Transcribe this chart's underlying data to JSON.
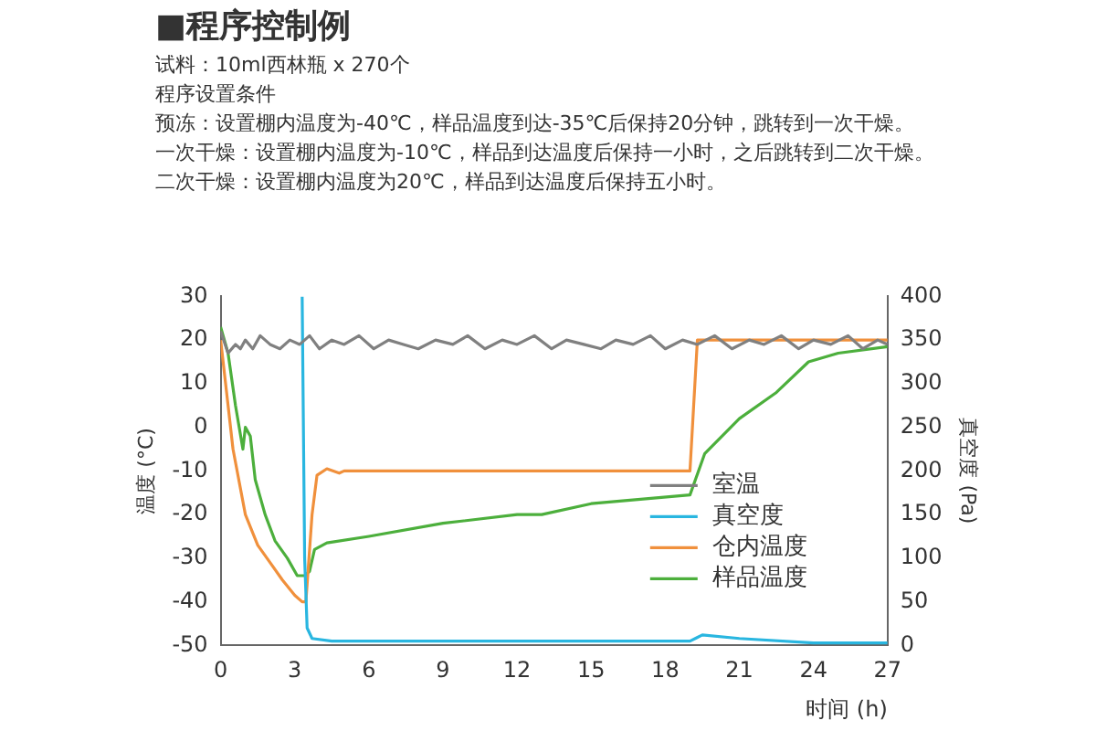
{
  "chart_data": {
    "type": "line",
    "title": "■程序控制例",
    "annotations": [
      "试料：10ml西林瓶 x 270个",
      "程序设置条件",
      "预冻：设置棚内温度为-40℃，样品温度到达-35℃后保持20分钟，跳转到一次干燥。",
      "一次干燥：设置棚内温度为-10℃，样品到达温度后保持一小时，之后跳转到二次干燥。",
      "二次干燥：设置棚内温度为20℃，样品到达温度后保持五小时。"
    ],
    "xlabel": "时间 (h)",
    "ylabel": "温度 (°C)",
    "y2label": "真空度 (Pa)",
    "xlim": [
      0,
      27
    ],
    "xticks": [
      0,
      3,
      6,
      9,
      12,
      15,
      18,
      21,
      24,
      27
    ],
    "ylim": [
      -50,
      30
    ],
    "yticks": [
      -50,
      -40,
      -30,
      -20,
      -10,
      0,
      10,
      20,
      30
    ],
    "y2lim": [
      0,
      400
    ],
    "y2ticks": [
      0,
      50,
      100,
      150,
      200,
      250,
      300,
      350,
      400
    ],
    "grid": false,
    "legend": "bottom right",
    "marker": "none",
    "line_style": "solid",
    "series": [
      {
        "name": "室温",
        "color": "#808080",
        "x": [
          0,
          0.3,
          0.6,
          0.8,
          1.0,
          1.3,
          1.6,
          2.0,
          2.4,
          2.8,
          3.2,
          3.6,
          4.0,
          4.5,
          5.0,
          5.6,
          6.2,
          6.8,
          7.4,
          8.0,
          8.7,
          9.4,
          10.0,
          10.7,
          11.4,
          12.0,
          12.7,
          13.4,
          14.0,
          14.7,
          15.4,
          16.0,
          16.7,
          17.4,
          18.0,
          18.7,
          19.3,
          20.0,
          20.7,
          21.4,
          22.0,
          22.7,
          23.4,
          24.0,
          24.7,
          25.4,
          26.0,
          26.6,
          27
        ],
        "values": [
          22,
          17,
          19,
          18,
          20,
          18,
          21,
          19,
          18,
          20,
          19,
          21,
          18,
          20,
          19,
          21,
          18,
          20,
          19,
          18,
          20,
          19,
          21,
          18,
          20,
          19,
          21,
          18,
          20,
          19,
          18,
          20,
          19,
          21,
          18,
          20,
          19,
          21,
          18,
          20,
          19,
          21,
          18,
          20,
          19,
          21,
          18,
          20,
          19
        ]
      },
      {
        "name": "真空度",
        "color": "#29b6e0",
        "axis": "y2",
        "x": [
          3.3,
          3.4,
          3.5,
          3.7,
          4.5,
          19,
          19.5,
          21,
          24,
          27
        ],
        "values": [
          400,
          100,
          20,
          8,
          5,
          5,
          12,
          8,
          3,
          3
        ]
      },
      {
        "name": "仓内温度",
        "color": "#f0903c",
        "x": [
          0,
          0.5,
          1,
          1.5,
          2,
          2.5,
          3,
          3.3,
          3.45,
          3.7,
          3.9,
          4.3,
          4.8,
          5,
          19,
          19.3,
          21,
          23,
          25,
          27
        ],
        "values": [
          20,
          -5,
          -20,
          -27,
          -31,
          -35,
          -38.5,
          -40,
          -40,
          -20,
          -11,
          -9.5,
          -10.5,
          -10,
          -10,
          20,
          20,
          20,
          20,
          20
        ]
      },
      {
        "name": "样品温度",
        "color": "#4caf3c",
        "x": [
          0,
          0.3,
          0.6,
          0.9,
          1,
          1.2,
          1.4,
          1.8,
          2.2,
          2.7,
          3.1,
          3.4,
          3.6,
          3.8,
          4.3,
          6,
          9,
          12,
          13,
          15,
          19,
          19.6,
          21,
          22.5,
          23.8,
          25,
          27
        ],
        "values": [
          23,
          17,
          5,
          -5,
          0,
          -2,
          -12,
          -20,
          -26,
          -30,
          -34,
          -34,
          -33,
          -28,
          -26.5,
          -25,
          -22,
          -20,
          -20,
          -17.5,
          -15.5,
          -6,
          2,
          8,
          15,
          17,
          18.5
        ]
      }
    ]
  }
}
